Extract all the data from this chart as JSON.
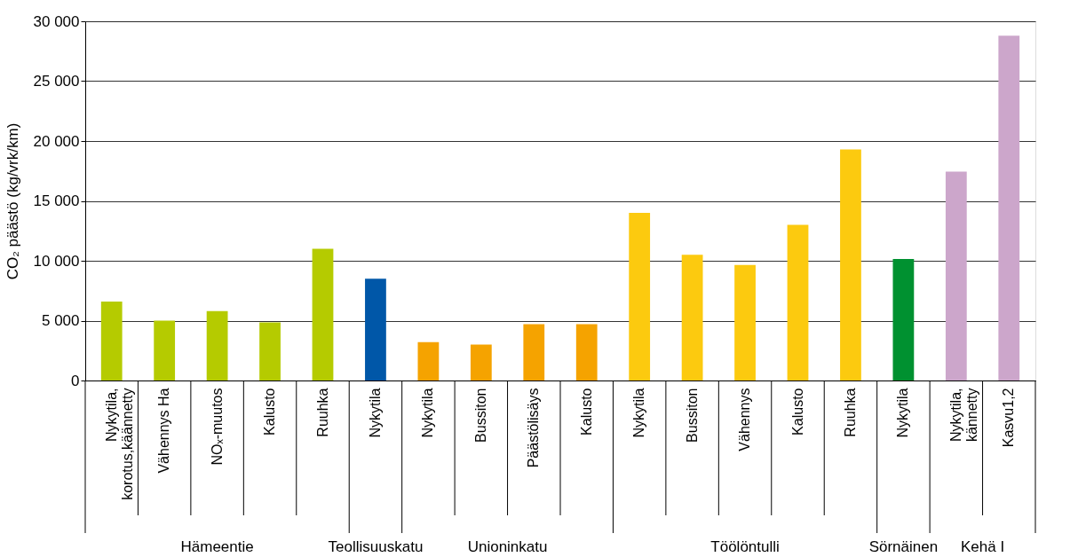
{
  "chart_data": {
    "type": "bar",
    "ylabel": "CO₂ päästö (kg/vrk/km)",
    "categories": [
      "Nykytila,\nkorotus,käännetty",
      "Vähennys Ha",
      "NOₓ-muutos",
      "Kalusto",
      "Ruuhka",
      "Nykytila",
      "Nykytila",
      "Bussiton",
      "Päästölisäys",
      "Kalusto",
      "Nykytila",
      "Bussiton",
      "Vähennys",
      "Kalusto",
      "Ruuhka",
      "Nykytila",
      "Nykytila,\nkännetty",
      "Kasvu1,2"
    ],
    "values": [
      6600,
      5000,
      5800,
      4850,
      11000,
      8500,
      3200,
      3000,
      4700,
      4700,
      14000,
      10500,
      9650,
      13000,
      19300,
      10150,
      17450,
      28800
    ],
    "colors": [
      "#b5cb00",
      "#b5cb00",
      "#b5cb00",
      "#b5cb00",
      "#b5cb00",
      "#0057a8",
      "#f5a300",
      "#f5a300",
      "#f5a300",
      "#f5a300",
      "#fcca0f",
      "#fcca0f",
      "#fcca0f",
      "#fcca0f",
      "#fcca0f",
      "#009130",
      "#cca6cb",
      "#cca6cb"
    ],
    "annotations": [
      "Hämeentie",
      "Teollisuuskatu",
      "Unioninkatu",
      "Töölöntulli",
      "Sörnäinen",
      "Kehä I"
    ],
    "ylim": [
      0,
      30000
    ],
    "yticks": [
      0,
      {
        "value": 5000,
        "label": "5 000"
      },
      {
        "value": 10000,
        "label": "10 000"
      },
      {
        "value": 15000,
        "label": "15 000"
      },
      {
        "value": 20000,
        "label": "20 000"
      },
      {
        "value": 25000,
        "label": "25 000"
      },
      {
        "value": 30000,
        "label": "30 000"
      }
    ],
    "grid": "y",
    "legend": false
  }
}
